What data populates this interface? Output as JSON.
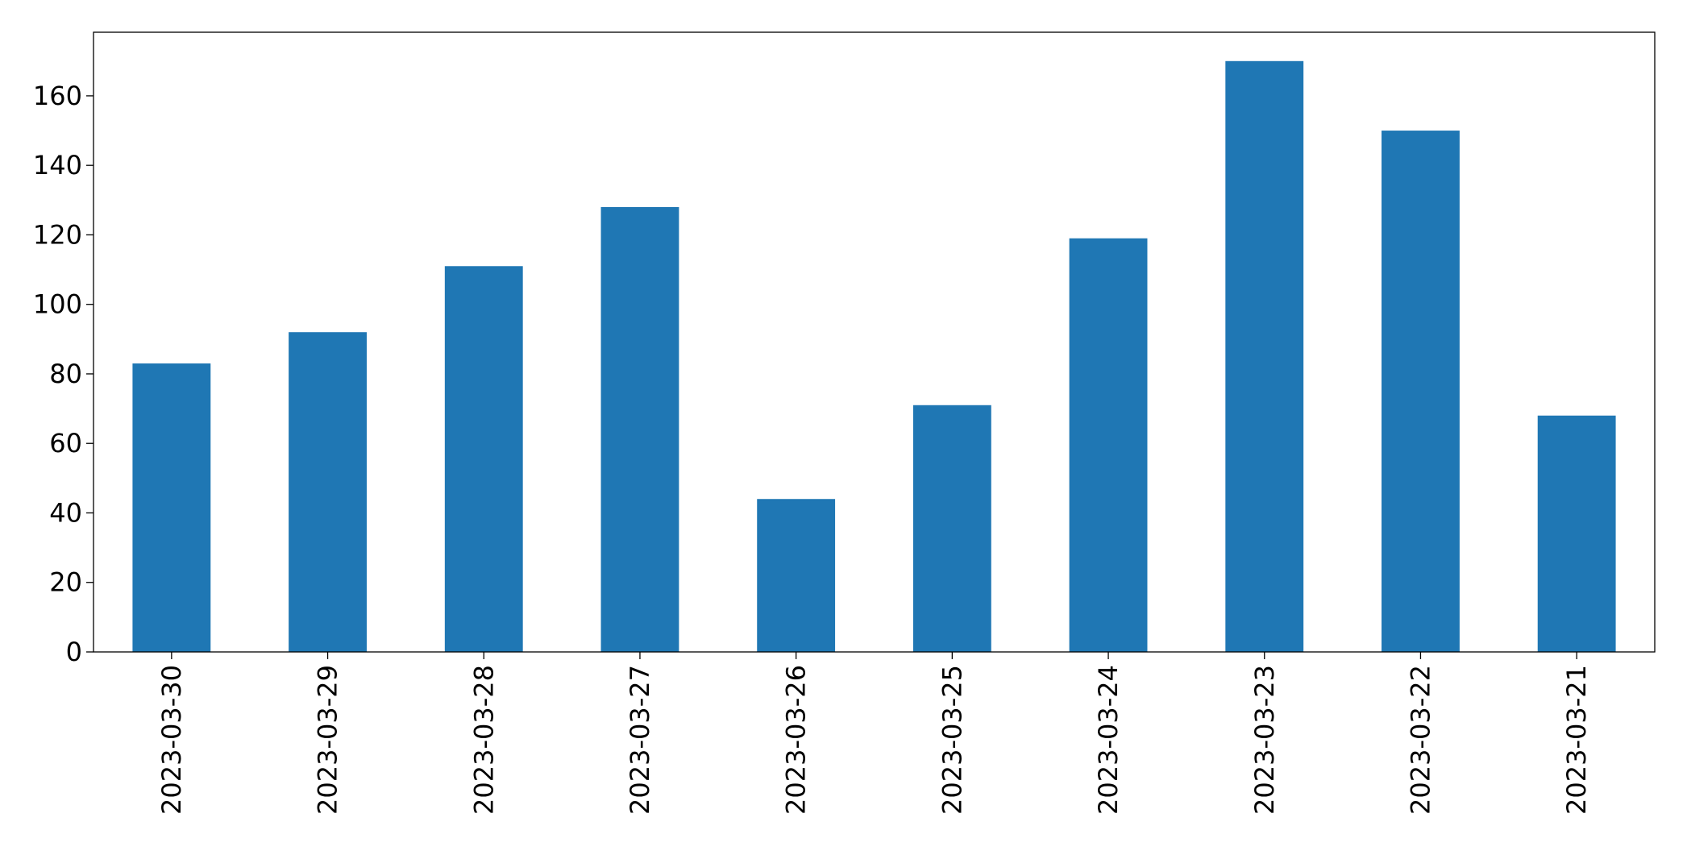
{
  "chart_data": {
    "type": "bar",
    "categories": [
      "2023-03-30",
      "2023-03-29",
      "2023-03-28",
      "2023-03-27",
      "2023-03-26",
      "2023-03-25",
      "2023-03-24",
      "2023-03-23",
      "2023-03-22",
      "2023-03-21"
    ],
    "values": [
      83,
      92,
      111,
      128,
      44,
      71,
      119,
      170,
      150,
      68
    ],
    "color": "#1f77b4",
    "ylim": [
      0,
      178.3
    ],
    "yticks": [
      0,
      20,
      40,
      60,
      80,
      100,
      120,
      140,
      160
    ],
    "grid": false
  }
}
